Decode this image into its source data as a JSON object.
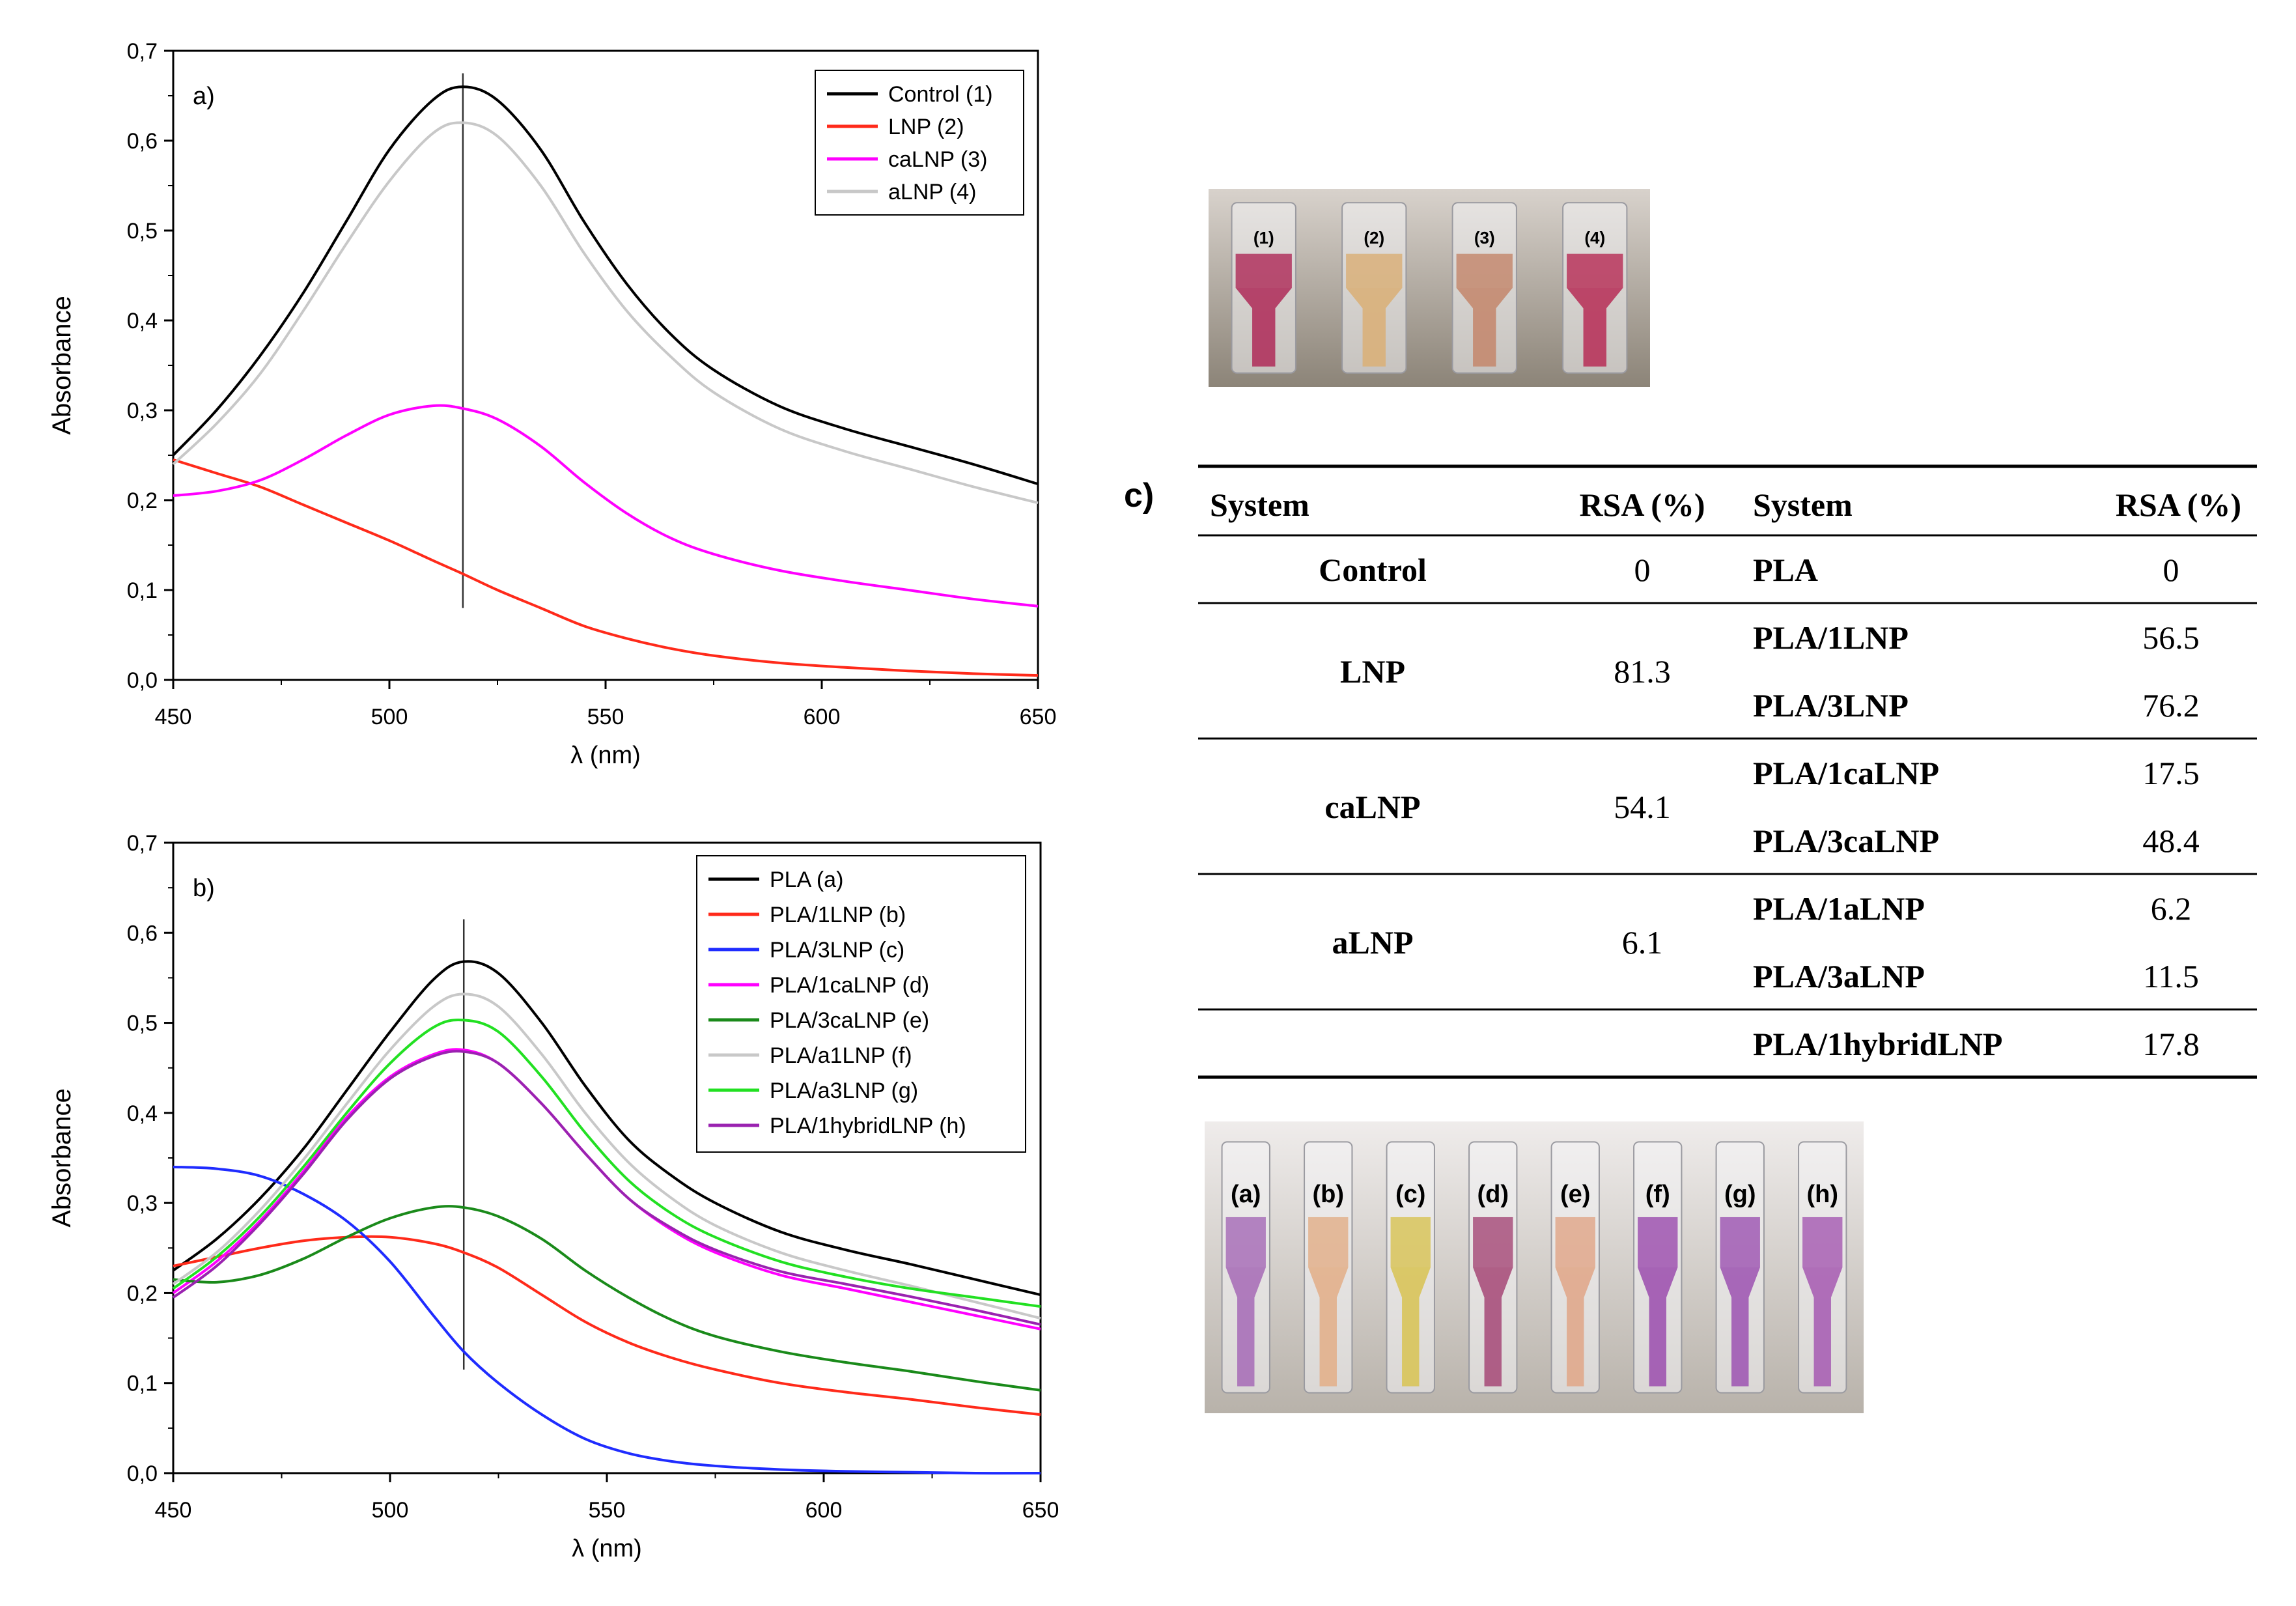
{
  "chart_data": [
    {
      "type": "line",
      "panel_label": "a)",
      "xlabel": "λ (nm)",
      "ylabel": "Absorbance",
      "xlim": [
        450,
        650
      ],
      "ylim": [
        0.0,
        0.7
      ],
      "xticks": [
        "450",
        "500",
        "550",
        "600",
        "650"
      ],
      "yticks": [
        "0,0",
        "0,1",
        "0,2",
        "0,3",
        "0,4",
        "0,5",
        "0,6",
        "0,7"
      ],
      "vline": {
        "x": 517,
        "y_range": [
          0.08,
          0.675
        ]
      },
      "legend_position": "top-right",
      "series": [
        {
          "name": "Control (1)",
          "color": "#000000",
          "x": [
            450,
            460,
            470,
            480,
            490,
            500,
            510,
            517,
            525,
            535,
            545,
            555,
            565,
            575,
            590,
            605,
            620,
            635,
            650
          ],
          "y": [
            0.25,
            0.3,
            0.36,
            0.43,
            0.51,
            0.59,
            0.645,
            0.66,
            0.645,
            0.59,
            0.51,
            0.44,
            0.385,
            0.345,
            0.305,
            0.28,
            0.26,
            0.24,
            0.218
          ]
        },
        {
          "name": "LNP (2)",
          "color": "#ff2a1a",
          "x": [
            450,
            460,
            470,
            480,
            490,
            500,
            510,
            517,
            525,
            535,
            545,
            555,
            565,
            575,
            590,
            605,
            620,
            635,
            650
          ],
          "y": [
            0.245,
            0.23,
            0.215,
            0.195,
            0.175,
            0.155,
            0.133,
            0.118,
            0.1,
            0.08,
            0.06,
            0.046,
            0.035,
            0.027,
            0.019,
            0.014,
            0.01,
            0.007,
            0.005
          ]
        },
        {
          "name": "caLNP (3)",
          "color": "#ff00ff",
          "x": [
            450,
            460,
            470,
            480,
            490,
            500,
            510,
            517,
            525,
            535,
            545,
            555,
            565,
            575,
            590,
            605,
            620,
            635,
            650
          ],
          "y": [
            0.205,
            0.21,
            0.222,
            0.245,
            0.272,
            0.295,
            0.305,
            0.302,
            0.29,
            0.26,
            0.22,
            0.185,
            0.158,
            0.14,
            0.122,
            0.11,
            0.1,
            0.09,
            0.082
          ]
        },
        {
          "name": "aLNP (4)",
          "color": "#c8c8c8",
          "x": [
            450,
            460,
            470,
            480,
            490,
            500,
            510,
            517,
            525,
            535,
            545,
            555,
            565,
            575,
            590,
            605,
            620,
            635,
            650
          ],
          "y": [
            0.24,
            0.285,
            0.34,
            0.41,
            0.485,
            0.555,
            0.608,
            0.62,
            0.605,
            0.55,
            0.475,
            0.41,
            0.36,
            0.32,
            0.28,
            0.255,
            0.235,
            0.215,
            0.197
          ]
        }
      ]
    },
    {
      "type": "line",
      "panel_label": "b)",
      "xlabel": "λ (nm)",
      "ylabel": "Absorbance",
      "xlim": [
        450,
        650
      ],
      "ylim": [
        0.0,
        0.7
      ],
      "xticks": [
        "450",
        "500",
        "550",
        "600",
        "650"
      ],
      "yticks": [
        "0,0",
        "0,1",
        "0,2",
        "0,3",
        "0,4",
        "0,5",
        "0,6",
        "0,7"
      ],
      "vline": {
        "x": 517,
        "y_range": [
          0.115,
          0.615
        ]
      },
      "legend_position": "top-right",
      "series": [
        {
          "name": "PLA (a)",
          "color": "#000000",
          "x": [
            450,
            460,
            470,
            480,
            490,
            500,
            510,
            517,
            525,
            535,
            545,
            555,
            565,
            575,
            590,
            605,
            620,
            635,
            650
          ],
          "y": [
            0.225,
            0.26,
            0.305,
            0.36,
            0.425,
            0.49,
            0.548,
            0.568,
            0.555,
            0.5,
            0.43,
            0.37,
            0.33,
            0.3,
            0.268,
            0.248,
            0.232,
            0.215,
            0.198
          ]
        },
        {
          "name": "PLA/1LNP (b)",
          "color": "#ff2a1a",
          "x": [
            450,
            460,
            470,
            480,
            490,
            500,
            510,
            517,
            525,
            535,
            545,
            555,
            565,
            575,
            590,
            605,
            620,
            635,
            650
          ],
          "y": [
            0.23,
            0.24,
            0.25,
            0.258,
            0.262,
            0.262,
            0.255,
            0.245,
            0.228,
            0.198,
            0.168,
            0.145,
            0.128,
            0.115,
            0.1,
            0.09,
            0.082,
            0.073,
            0.065
          ]
        },
        {
          "name": "PLA/3LNP (c)",
          "color": "#1f2cff",
          "x": [
            450,
            460,
            470,
            480,
            490,
            500,
            510,
            517,
            525,
            535,
            545,
            555,
            565,
            575,
            590,
            605,
            620,
            635,
            650
          ],
          "y": [
            0.34,
            0.338,
            0.33,
            0.31,
            0.28,
            0.235,
            0.175,
            0.135,
            0.1,
            0.065,
            0.038,
            0.022,
            0.013,
            0.008,
            0.004,
            0.002,
            0.001,
            0.0,
            0.0
          ]
        },
        {
          "name": "PLA/1caLNP (d)",
          "color": "#ff00ff",
          "x": [
            450,
            460,
            470,
            480,
            490,
            500,
            510,
            517,
            525,
            535,
            545,
            555,
            565,
            575,
            590,
            605,
            620,
            635,
            650
          ],
          "y": [
            0.2,
            0.235,
            0.28,
            0.335,
            0.395,
            0.44,
            0.465,
            0.47,
            0.455,
            0.41,
            0.355,
            0.305,
            0.27,
            0.245,
            0.22,
            0.205,
            0.19,
            0.175,
            0.16
          ]
        },
        {
          "name": "PLA/3caLNP (e)",
          "color": "#1a8a1a",
          "x": [
            450,
            460,
            470,
            480,
            490,
            500,
            510,
            517,
            525,
            535,
            545,
            555,
            565,
            575,
            590,
            605,
            620,
            635,
            650
          ],
          "y": [
            0.215,
            0.212,
            0.22,
            0.238,
            0.262,
            0.283,
            0.295,
            0.295,
            0.285,
            0.26,
            0.225,
            0.195,
            0.17,
            0.152,
            0.135,
            0.123,
            0.113,
            0.102,
            0.092
          ]
        },
        {
          "name": "PLA/a1LNP (f)",
          "color": "#c8c8c8",
          "x": [
            450,
            460,
            470,
            480,
            490,
            500,
            510,
            517,
            525,
            535,
            545,
            555,
            565,
            575,
            590,
            605,
            620,
            635,
            650
          ],
          "y": [
            0.21,
            0.245,
            0.292,
            0.348,
            0.41,
            0.47,
            0.518,
            0.532,
            0.518,
            0.465,
            0.4,
            0.345,
            0.305,
            0.275,
            0.245,
            0.225,
            0.208,
            0.19,
            0.172
          ]
        },
        {
          "name": "PLA/a3LNP (g)",
          "color": "#22e022",
          "x": [
            450,
            460,
            470,
            480,
            490,
            500,
            510,
            517,
            525,
            535,
            545,
            555,
            565,
            575,
            590,
            605,
            620,
            635,
            650
          ],
          "y": [
            0.205,
            0.24,
            0.285,
            0.34,
            0.4,
            0.455,
            0.495,
            0.503,
            0.49,
            0.44,
            0.378,
            0.325,
            0.288,
            0.262,
            0.235,
            0.218,
            0.205,
            0.195,
            0.185
          ]
        },
        {
          "name": "PLA/1hybridLNP (h)",
          "color": "#9a22b0",
          "x": [
            450,
            460,
            470,
            480,
            490,
            500,
            510,
            517,
            525,
            535,
            545,
            555,
            565,
            575,
            590,
            605,
            620,
            635,
            650
          ],
          "y": [
            0.195,
            0.23,
            0.277,
            0.332,
            0.392,
            0.438,
            0.463,
            0.468,
            0.455,
            0.41,
            0.355,
            0.305,
            0.272,
            0.248,
            0.224,
            0.21,
            0.196,
            0.181,
            0.165
          ]
        }
      ]
    }
  ],
  "photos": {
    "top_labels": [
      "(1)",
      "(2)",
      "(3)",
      "(4)"
    ],
    "top_colors": [
      "#b0335e",
      "#d9b07a",
      "#c48a70",
      "#b8355c"
    ],
    "bottom_labels": [
      "(a)",
      "(b)",
      "(c)",
      "(d)",
      "(e)",
      "(f)",
      "(g)",
      "(h)"
    ],
    "bottom_colors": [
      "#a870b8",
      "#e2b08c",
      "#d8c45a",
      "#a8507c",
      "#e0a88c",
      "#9f54b0",
      "#a05ab4",
      "#a860b4"
    ]
  },
  "table": {
    "label": "c)",
    "headers": [
      "System",
      "RSA (%)",
      "System",
      "RSA (%)"
    ],
    "groups": [
      {
        "system": "Control",
        "rsa": "0",
        "rows": [
          {
            "system": "PLA",
            "rsa": "0"
          }
        ]
      },
      {
        "system": "LNP",
        "rsa": "81.3",
        "rows": [
          {
            "system": "PLA/1LNP",
            "rsa": "56.5"
          },
          {
            "system": "PLA/3LNP",
            "rsa": "76.2"
          }
        ]
      },
      {
        "system": "caLNP",
        "rsa": "54.1",
        "rows": [
          {
            "system": "PLA/1caLNP",
            "rsa": "17.5"
          },
          {
            "system": "PLA/3caLNP",
            "rsa": "48.4"
          }
        ]
      },
      {
        "system": "aLNP",
        "rsa": "6.1",
        "rows": [
          {
            "system": "PLA/1aLNP",
            "rsa": "6.2"
          },
          {
            "system": "PLA/3aLNP",
            "rsa": "11.5"
          }
        ]
      },
      {
        "system": "",
        "rsa": "",
        "rows": [
          {
            "system": "PLA/1hybridLNP",
            "rsa": "17.8"
          }
        ]
      }
    ]
  }
}
